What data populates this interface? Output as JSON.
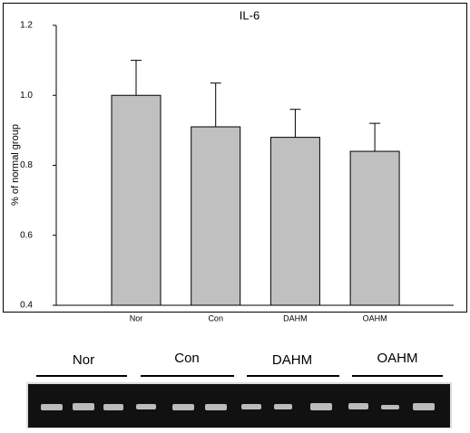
{
  "chart_data": {
    "type": "bar",
    "title": "IL-6",
    "y_label": "% of normal group",
    "categories": [
      "Nor",
      "Con",
      "DAHM",
      "OAHM"
    ],
    "values": [
      1.0,
      0.91,
      0.88,
      0.84
    ],
    "errors": [
      0.1,
      0.125,
      0.08,
      0.08
    ],
    "color": "#c0c0c0",
    "ylim": [
      0.4,
      1.2
    ],
    "yticks": [
      0.4,
      0.6,
      0.8,
      {
        "value": 1,
        "label": "1.0"
      },
      1.2
    ]
  },
  "gel": {
    "lanes": [
      "Nor",
      "Con",
      "DAHM",
      "OAHM"
    ]
  }
}
